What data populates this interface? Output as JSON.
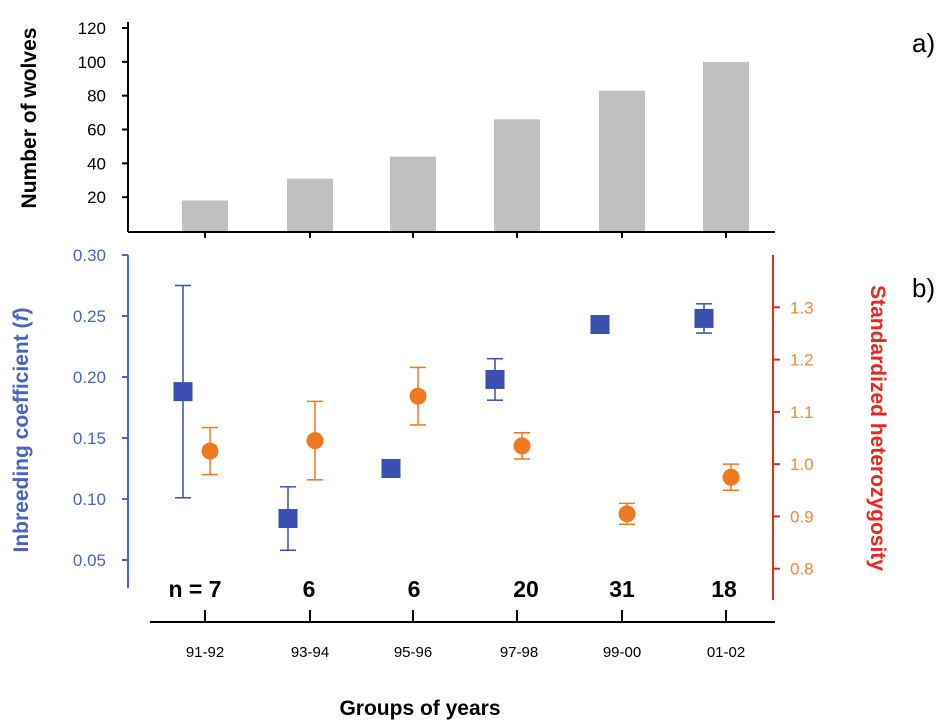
{
  "chart_data": [
    {
      "panel": "a)",
      "type": "bar",
      "categories": [
        "91-92",
        "93-94",
        "95-96",
        "97-98",
        "99-00",
        "01-02"
      ],
      "values": [
        18,
        31,
        44,
        66,
        83,
        100
      ],
      "ylabel": "Number of wolves",
      "yticks": [
        "20",
        "40",
        "60",
        "80",
        "100",
        "120"
      ],
      "ylim": [
        0,
        120
      ],
      "bar_color": "#c0c0c0"
    },
    {
      "panel": "b)",
      "type": "scatter",
      "categories": [
        "91-92",
        "93-94",
        "95-96",
        "97-98",
        "99-00",
        "01-02"
      ],
      "xlabel": "Groups of years",
      "series": [
        {
          "axis": "left",
          "marker": "square",
          "color": "#3a4fb0",
          "values": [
            0.188,
            0.084,
            0.125,
            0.198,
            0.243,
            0.248
          ],
          "error": [
            0.087,
            0.026,
            null,
            0.017,
            null,
            0.012
          ]
        },
        {
          "axis": "right",
          "marker": "circle",
          "color": "#f07820",
          "values": [
            1.025,
            1.045,
            1.13,
            1.035,
            0.905,
            0.975
          ],
          "error": [
            0.045,
            0.075,
            0.055,
            0.025,
            0.02,
            0.025
          ]
        }
      ],
      "left_axis": {
        "label_prefix": "Inbreeding coefficient (",
        "label_italic": "f",
        "label_suffix": ")",
        "ticks": [
          "0.05",
          "0.10",
          "0.15",
          "0.20",
          "0.25",
          "0.30"
        ],
        "ylim": [
          0.0,
          0.3
        ],
        "color": "#4a63c4"
      },
      "right_axis": {
        "label": "Standardized heterozygosity",
        "ticks": [
          "0.8",
          "0.9",
          "1.0",
          "1.1",
          "1.2",
          "1.3"
        ],
        "ylim": [
          0.7,
          1.4
        ],
        "color": "#e8281e",
        "tick_color": "#f08a3a"
      },
      "n_labels": [
        "n = 7",
        "6",
        "6",
        "20",
        "31",
        "18"
      ]
    }
  ]
}
